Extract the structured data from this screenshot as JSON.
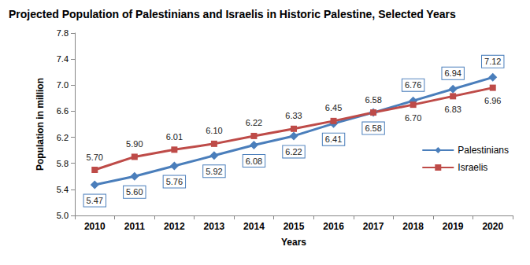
{
  "chart_data": {
    "type": "line",
    "title": "Projected Population of Palestinians and Israelis in Historic Palestine, Selected Years",
    "x_label": "Years",
    "y_label": "Population in million",
    "categories": [
      "2010",
      "2011",
      "2012",
      "2013",
      "2014",
      "2015",
      "2016",
      "2017",
      "2018",
      "2019",
      "2020"
    ],
    "series": [
      {
        "name": "Palestinians",
        "color": "#4a7ebb",
        "marker": "diamond",
        "values": [
          5.47,
          5.6,
          5.76,
          5.92,
          6.08,
          6.22,
          6.41,
          6.58,
          6.76,
          6.94,
          7.12
        ],
        "value_labels": [
          "5.47",
          "5.60",
          "5.76",
          "5.92",
          "6.08",
          "6.22",
          "6.41",
          "6.58",
          "6.76",
          "6.94",
          "7.12"
        ]
      },
      {
        "name": "Israelis",
        "color": "#be4b48",
        "marker": "square",
        "values": [
          5.7,
          5.9,
          6.01,
          6.1,
          6.22,
          6.33,
          6.45,
          6.58,
          6.7,
          6.83,
          6.96
        ],
        "value_labels": [
          "5.70",
          "5.90",
          "6.01",
          "6.10",
          "6.22",
          "6.33",
          "6.45",
          "6.58",
          "6.70",
          "6.83",
          "6.96"
        ]
      }
    ],
    "ylim": [
      5.0,
      7.8
    ],
    "yticks": [
      {
        "value": 5.0,
        "label": "5.0"
      },
      5.4,
      5.8,
      6.2,
      6.6,
      {
        "value": 7.0,
        "label": "7.0"
      },
      7.4,
      7.8
    ],
    "grid": false,
    "legend": "right",
    "data_labels": true
  }
}
